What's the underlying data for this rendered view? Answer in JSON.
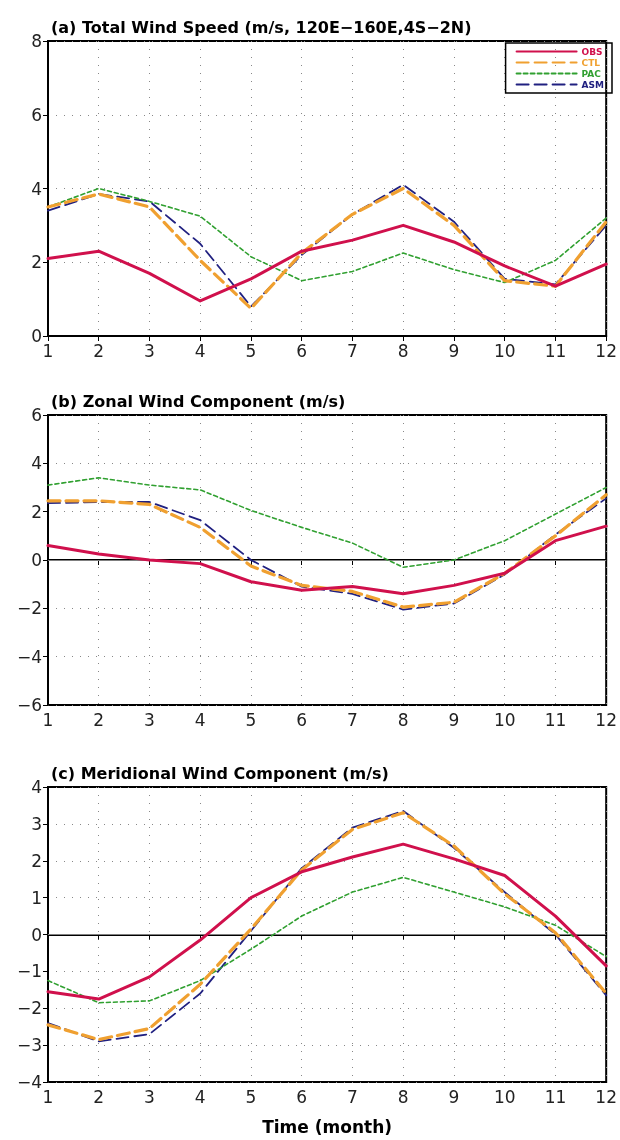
{
  "chart_data": [
    {
      "type": "line",
      "title": "(a) Total Wind Speed (m/s, 120E−160E,4S−2N)",
      "x": [
        1,
        2,
        3,
        4,
        5,
        6,
        7,
        8,
        9,
        10,
        11,
        12
      ],
      "xlim": [
        1,
        12
      ],
      "xticks": [
        1,
        2,
        3,
        4,
        5,
        6,
        7,
        8,
        9,
        10,
        11,
        12
      ],
      "ylim": [
        0,
        8
      ],
      "yticks": [
        0,
        2,
        4,
        6,
        8
      ],
      "grid": true,
      "legend": "top right",
      "marker": "none",
      "series": [
        {
          "name": "OBS",
          "color": "#d0104c",
          "line_style": "solid",
          "values": [
            2.1,
            2.3,
            1.7,
            0.95,
            1.55,
            2.3,
            2.6,
            3.0,
            2.55,
            1.9,
            1.35,
            1.95
          ]
        },
        {
          "name": "CTL",
          "color": "#f0a030",
          "line_style": "dashed",
          "values": [
            3.5,
            3.85,
            3.5,
            2.05,
            0.75,
            2.25,
            3.3,
            4.0,
            3.0,
            1.5,
            1.35,
            3.1
          ]
        },
        {
          "name": "PAC",
          "color": "#30a030",
          "line_style": "dotted",
          "values": [
            3.5,
            4.0,
            3.65,
            3.25,
            2.15,
            1.5,
            1.75,
            2.25,
            1.8,
            1.45,
            2.05,
            3.2
          ]
        },
        {
          "name": "ASM",
          "color": "#202080",
          "line_style": "dashed",
          "values": [
            3.4,
            3.85,
            3.65,
            2.5,
            0.8,
            2.2,
            3.3,
            4.1,
            3.1,
            1.55,
            1.4,
            3.0
          ]
        }
      ]
    },
    {
      "type": "line",
      "title": "(b) Zonal Wind Component (m/s)",
      "x": [
        1,
        2,
        3,
        4,
        5,
        6,
        7,
        8,
        9,
        10,
        11,
        12
      ],
      "xlim": [
        1,
        12
      ],
      "xticks": [
        1,
        2,
        3,
        4,
        5,
        6,
        7,
        8,
        9,
        10,
        11,
        12
      ],
      "ylim": [
        -6,
        6
      ],
      "yticks": [
        -6,
        -4,
        -2,
        0,
        2,
        4,
        6
      ],
      "grid": true,
      "legend": false,
      "marker": "none",
      "ref_lines": [
        {
          "axis": "y",
          "value": 0,
          "color": "#808080"
        }
      ],
      "series": [
        {
          "color": "#d0104c",
          "line_style": "solid",
          "values": [
            0.6,
            0.25,
            0.0,
            -0.15,
            -0.9,
            -1.25,
            -1.1,
            -1.4,
            -1.05,
            -0.55,
            0.8,
            1.4
          ]
        },
        {
          "color": "#f0a030",
          "line_style": "dashed",
          "values": [
            2.45,
            2.45,
            2.3,
            1.35,
            -0.25,
            -1.05,
            -1.3,
            -1.95,
            -1.75,
            -0.55,
            1.0,
            2.7
          ]
        },
        {
          "color": "#30a030",
          "line_style": "dotted",
          "values": [
            3.1,
            3.4,
            3.1,
            2.9,
            2.05,
            1.35,
            0.7,
            -0.3,
            0.0,
            0.8,
            1.9,
            3.0
          ]
        },
        {
          "color": "#202080",
          "line_style": "dashed",
          "values": [
            2.35,
            2.4,
            2.4,
            1.65,
            0.0,
            -1.1,
            -1.4,
            -2.05,
            -1.8,
            -0.6,
            1.05,
            2.55
          ]
        }
      ]
    },
    {
      "type": "line",
      "title": "(c) Meridional Wind Component (m/s)",
      "xlabel": "Time (month)",
      "x": [
        1,
        2,
        3,
        4,
        5,
        6,
        7,
        8,
        9,
        10,
        11,
        12
      ],
      "xlim": [
        1,
        12
      ],
      "xticks": [
        1,
        2,
        3,
        4,
        5,
        6,
        7,
        8,
        9,
        10,
        11,
        12
      ],
      "ylim": [
        -4,
        4
      ],
      "yticks": [
        -4,
        -3,
        -2,
        -1,
        0,
        1,
        2,
        3,
        4
      ],
      "grid": true,
      "legend": false,
      "marker": "none",
      "ref_lines": [
        {
          "axis": "y",
          "value": 0,
          "color": "#808080"
        }
      ],
      "series": [
        {
          "color": "#d0104c",
          "line_style": "solid",
          "values": [
            -1.55,
            -1.75,
            -1.15,
            -0.15,
            1.0,
            1.7,
            2.1,
            2.45,
            2.05,
            1.6,
            0.5,
            -0.85
          ]
        },
        {
          "color": "#f0a030",
          "line_style": "dashed",
          "values": [
            -2.45,
            -2.85,
            -2.55,
            -1.35,
            0.15,
            1.75,
            2.85,
            3.3,
            2.4,
            1.1,
            0.05,
            -1.6
          ]
        },
        {
          "color": "#30a030",
          "line_style": "dotted",
          "values": [
            -1.25,
            -1.85,
            -1.8,
            -1.25,
            -0.4,
            0.5,
            1.15,
            1.55,
            1.15,
            0.75,
            0.25,
            -0.6
          ]
        },
        {
          "color": "#202080",
          "line_style": "dashed",
          "values": [
            -2.4,
            -2.9,
            -2.7,
            -1.6,
            0.1,
            1.8,
            2.9,
            3.35,
            2.35,
            1.15,
            0.0,
            -1.65
          ]
        }
      ]
    }
  ]
}
